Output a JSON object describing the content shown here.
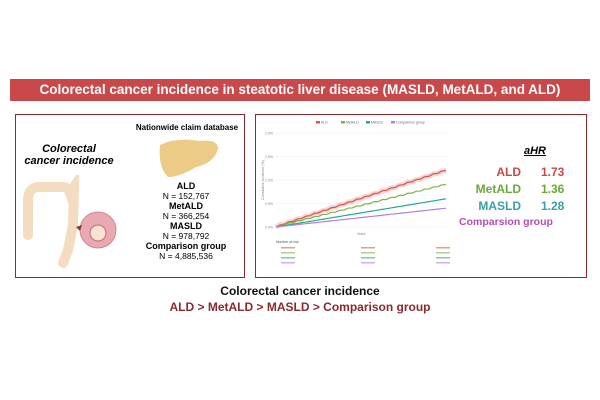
{
  "title": "Colorectal cancer incidence in steatotic liver disease (MASLD, MetALD, and ALD)",
  "left_panel": {
    "outcome_label": "Colorectal cancer incidence",
    "database_label": "Nationwide claim database",
    "groups": [
      {
        "name": "ALD",
        "n": "N = 152,767"
      },
      {
        "name": "MetALD",
        "n": "N = 366,254"
      },
      {
        "name": "MASLD",
        "n": "N = 978,792"
      },
      {
        "name": "Comparison group",
        "n": "N = 4,885,536"
      }
    ]
  },
  "chart_data": {
    "type": "line",
    "title": "",
    "xlabel": "Years",
    "ylabel": "Cumulative incidence (%)",
    "legend": [
      "ALD",
      "MetALD",
      "MASLD",
      "Comparison group"
    ],
    "legend_position": "top",
    "x": [
      0,
      10
    ],
    "series": [
      {
        "name": "ALD",
        "color": "#d9534f",
        "values": [
          0,
          1.2
        ]
      },
      {
        "name": "MetALD",
        "color": "#7cb342",
        "values": [
          0,
          0.9
        ]
      },
      {
        "name": "MASLD",
        "color": "#26a69a",
        "values": [
          0,
          0.6
        ]
      },
      {
        "name": "Comparison group",
        "color": "#b57edc",
        "values": [
          0,
          0.4
        ]
      }
    ],
    "ylim": [
      0,
      2.0
    ],
    "yticks": [
      "0.0%",
      "0.5%",
      "1.0%",
      "1.5%",
      "2.0%"
    ],
    "risk_table_label": "Number at risk"
  },
  "ahr": {
    "header": "aHR",
    "rows": [
      {
        "name": "ALD",
        "value": "1.73",
        "color": "#c9494b"
      },
      {
        "name": "MetALD",
        "value": "1.36",
        "color": "#6aaa3a"
      },
      {
        "name": "MASLD",
        "value": "1.28",
        "color": "#3a9fa8"
      },
      {
        "name": "Comparsion group",
        "value": "",
        "color": "#b44fb4"
      }
    ]
  },
  "conclusion": {
    "line1": "Colorectal cancer incidence",
    "line2": "ALD > MetALD > MASLD > Comparison group"
  }
}
